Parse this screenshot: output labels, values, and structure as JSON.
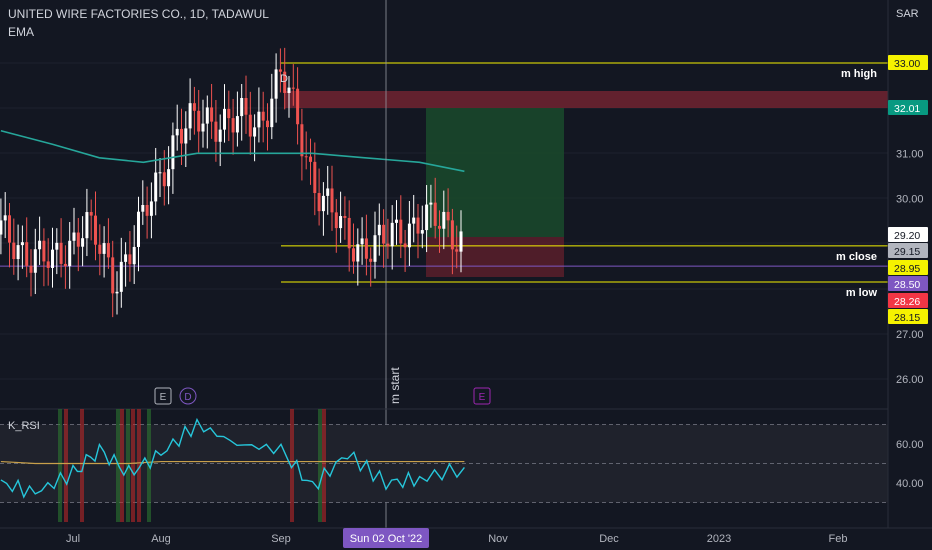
{
  "header": {
    "title": "UNITED WIRE FACTORIES CO., 1D, TADAWUL",
    "indicator": "EMA",
    "currency": "SAR"
  },
  "chart_data": {
    "type": "candlestick",
    "price_axis": {
      "ylim": [
        25.6,
        34.1
      ],
      "ticks": [
        "33.00",
        "32.01",
        "31.00",
        "30.00",
        "29.20",
        "29.15",
        "28.95",
        "28.50",
        "28.26",
        "28.15",
        "27.00",
        "26.00"
      ]
    },
    "x_axis": {
      "ticks": [
        "Jul",
        "Aug",
        "Sep",
        "Sun 02 Oct '22",
        "Nov",
        "Dec",
        "2023",
        "Feb"
      ],
      "crosshair_label": "Sun 02 Oct '22"
    },
    "price_tags": [
      {
        "value": "33.00",
        "bg": "#f5f200",
        "fg": "#131722"
      },
      {
        "value": "32.01",
        "bg": "#089981",
        "fg": "#ffffff"
      },
      {
        "value": "29.20",
        "bg": "#ffffff",
        "fg": "#131722"
      },
      {
        "value": "29.15",
        "bg": "#b2b5be",
        "fg": "#131722"
      },
      {
        "value": "28.95",
        "bg": "#f5f200",
        "fg": "#131722"
      },
      {
        "value": "28.50",
        "bg": "#7e57c2",
        "fg": "#ffffff"
      },
      {
        "value": "28.26",
        "bg": "#f23645",
        "fg": "#ffffff"
      },
      {
        "value": "28.15",
        "bg": "#f5f200",
        "fg": "#131722"
      }
    ],
    "levels": [
      {
        "name": "m high",
        "value": 33.0
      },
      {
        "name": "m close",
        "value": 28.95
      },
      {
        "name": "m low",
        "value": 28.15
      }
    ],
    "horizontal_line": {
      "value": 28.5,
      "color": "#7e57c2"
    },
    "annotations": {
      "m_start": "m start",
      "d_marker": "D",
      "event_markers": [
        "E",
        "D",
        "E"
      ]
    },
    "series": [
      {
        "name": "EMA",
        "color": "#26a69a",
        "x": [
          "Jun 10",
          "Jun 25",
          "Jul 10",
          "Jul 25",
          "Aug 10",
          "Aug 25",
          "Sep 10",
          "Sep 25",
          "Oct 10",
          "Oct 22"
        ],
        "y": [
          31.5,
          31.2,
          30.9,
          30.8,
          31.0,
          31.0,
          31.0,
          30.9,
          30.8,
          30.6
        ]
      },
      {
        "name": "Price",
        "color": "#ef5350",
        "x": [
          "Jun 10",
          "Jun 25",
          "Jul 5",
          "Jul 15",
          "Jul 25",
          "Aug 5",
          "Aug 15",
          "Aug 25",
          "Sep 1",
          "Sep 10",
          "Sep 20",
          "Oct 1",
          "Oct 10",
          "Oct 22"
        ],
        "y": [
          29.2,
          28.5,
          29.5,
          28.2,
          29.5,
          31.5,
          31.8,
          31.6,
          32.8,
          30.5,
          29.0,
          29.0,
          29.6,
          29.15
        ]
      }
    ],
    "rsi": {
      "name": "K_RSI",
      "ylim": [
        20,
        80
      ],
      "ticks": [
        "60.00",
        "40.00"
      ],
      "levels": [
        70,
        50,
        30
      ],
      "x": [
        "Jun 10",
        "Jun 20",
        "Jul 1",
        "Jul 10",
        "Jul 20",
        "Aug 1",
        "Aug 10",
        "Aug 20",
        "Sep 1",
        "Sep 10",
        "Sep 20",
        "Oct 1",
        "Oct 10",
        "Oct 22"
      ],
      "k_values": [
        40,
        35,
        45,
        57,
        45,
        55,
        70,
        60,
        57,
        38,
        55,
        40,
        42,
        48
      ],
      "signal_values": [
        51,
        50,
        50,
        50,
        50,
        51,
        51,
        51,
        51,
        51,
        51,
        51,
        51,
        51
      ]
    }
  }
}
